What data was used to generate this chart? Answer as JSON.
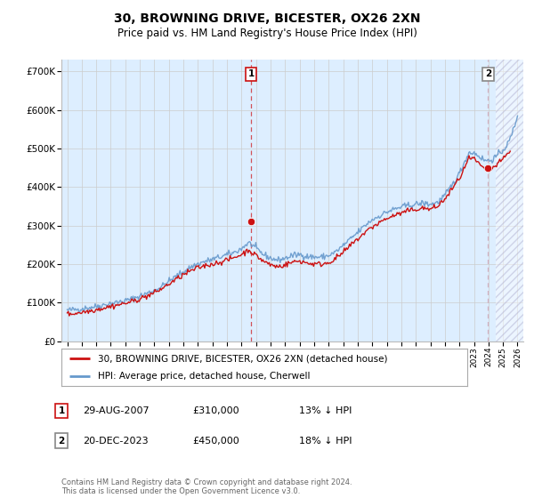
{
  "title": "30, BROWNING DRIVE, BICESTER, OX26 2XN",
  "subtitle": "Price paid vs. HM Land Registry's House Price Index (HPI)",
  "hpi_label": "HPI: Average price, detached house, Cherwell",
  "property_label": "30, BROWNING DRIVE, BICESTER, OX26 2XN (detached house)",
  "annotation1": {
    "label": "1",
    "date": "29-AUG-2007",
    "price": "£310,000",
    "note": "13% ↓ HPI",
    "x_year": 2007.66,
    "y_val": 310000
  },
  "annotation2": {
    "label": "2",
    "date": "20-DEC-2023",
    "price": "£450,000",
    "note": "18% ↓ HPI",
    "x_year": 2023.97,
    "y_val": 450000
  },
  "footer": "Contains HM Land Registry data © Crown copyright and database right 2024.\nThis data is licensed under the Open Government Licence v3.0.",
  "hpi_color": "#6699cc",
  "property_color": "#cc1111",
  "dashed_line_color": "#cc1111",
  "dashed_line_color2": "#cc99aa",
  "grid_color": "#cccccc",
  "plot_bg_color": "#ddeeff",
  "background_color": "#ffffff",
  "ylim": [
    0,
    730000
  ],
  "yticks": [
    0,
    100000,
    200000,
    300000,
    400000,
    500000,
    600000,
    700000
  ],
  "ytick_labels": [
    "£0",
    "£100K",
    "£200K",
    "£300K",
    "£400K",
    "£500K",
    "£600K",
    "£700K"
  ],
  "xlim_start": 1994.6,
  "xlim_end": 2026.4,
  "xtick_years": [
    1995,
    1996,
    1997,
    1998,
    1999,
    2000,
    2001,
    2002,
    2003,
    2004,
    2005,
    2006,
    2007,
    2008,
    2009,
    2010,
    2011,
    2012,
    2013,
    2014,
    2015,
    2016,
    2017,
    2018,
    2019,
    2020,
    2021,
    2022,
    2023,
    2024,
    2025,
    2026
  ],
  "hatch_start": 2024.5,
  "hpi_waypoints": [
    [
      1995.0,
      80000
    ],
    [
      1995.5,
      82000
    ],
    [
      1996.0,
      84000
    ],
    [
      1996.5,
      87000
    ],
    [
      1997.0,
      90000
    ],
    [
      1997.5,
      94000
    ],
    [
      1998.0,
      98000
    ],
    [
      1998.5,
      101000
    ],
    [
      1999.0,
      105000
    ],
    [
      1999.5,
      110000
    ],
    [
      2000.0,
      117000
    ],
    [
      2000.5,
      124000
    ],
    [
      2001.0,
      132000
    ],
    [
      2001.5,
      142000
    ],
    [
      2002.0,
      155000
    ],
    [
      2002.5,
      168000
    ],
    [
      2003.0,
      180000
    ],
    [
      2003.5,
      192000
    ],
    [
      2004.0,
      200000
    ],
    [
      2004.5,
      207000
    ],
    [
      2005.0,
      212000
    ],
    [
      2005.5,
      218000
    ],
    [
      2006.0,
      224000
    ],
    [
      2006.5,
      230000
    ],
    [
      2007.0,
      240000
    ],
    [
      2007.3,
      250000
    ],
    [
      2007.5,
      255000
    ],
    [
      2007.8,
      248000
    ],
    [
      2008.0,
      240000
    ],
    [
      2008.5,
      225000
    ],
    [
      2009.0,
      215000
    ],
    [
      2009.5,
      210000
    ],
    [
      2010.0,
      215000
    ],
    [
      2010.5,
      222000
    ],
    [
      2011.0,
      225000
    ],
    [
      2011.5,
      220000
    ],
    [
      2012.0,
      218000
    ],
    [
      2012.5,
      218000
    ],
    [
      2013.0,
      222000
    ],
    [
      2013.5,
      232000
    ],
    [
      2014.0,
      248000
    ],
    [
      2014.5,
      265000
    ],
    [
      2015.0,
      282000
    ],
    [
      2015.5,
      300000
    ],
    [
      2016.0,
      315000
    ],
    [
      2016.5,
      325000
    ],
    [
      2017.0,
      335000
    ],
    [
      2017.5,
      342000
    ],
    [
      2018.0,
      348000
    ],
    [
      2018.5,
      352000
    ],
    [
      2019.0,
      355000
    ],
    [
      2019.5,
      358000
    ],
    [
      2020.0,
      355000
    ],
    [
      2020.5,
      360000
    ],
    [
      2021.0,
      378000
    ],
    [
      2021.5,
      405000
    ],
    [
      2022.0,
      435000
    ],
    [
      2022.3,
      460000
    ],
    [
      2022.5,
      478000
    ],
    [
      2022.7,
      490000
    ],
    [
      2023.0,
      488000
    ],
    [
      2023.3,
      482000
    ],
    [
      2023.5,
      475000
    ],
    [
      2023.7,
      470000
    ],
    [
      2024.0,
      468000
    ],
    [
      2024.3,
      472000
    ],
    [
      2024.5,
      478000
    ],
    [
      2024.7,
      485000
    ],
    [
      2025.0,
      495000
    ],
    [
      2025.3,
      510000
    ],
    [
      2025.5,
      525000
    ],
    [
      2025.7,
      548000
    ],
    [
      2025.9,
      570000
    ],
    [
      2026.0,
      590000
    ]
  ],
  "prop_waypoints": [
    [
      1995.0,
      70000
    ],
    [
      1995.5,
      72000
    ],
    [
      1996.0,
      75000
    ],
    [
      1996.5,
      78000
    ],
    [
      1997.0,
      82000
    ],
    [
      1997.5,
      86000
    ],
    [
      1998.0,
      90000
    ],
    [
      1998.5,
      94000
    ],
    [
      1999.0,
      98000
    ],
    [
      1999.5,
      103000
    ],
    [
      2000.0,
      110000
    ],
    [
      2000.5,
      117000
    ],
    [
      2001.0,
      125000
    ],
    [
      2001.5,
      136000
    ],
    [
      2002.0,
      148000
    ],
    [
      2002.5,
      160000
    ],
    [
      2003.0,
      172000
    ],
    [
      2003.5,
      182000
    ],
    [
      2004.0,
      190000
    ],
    [
      2004.5,
      196000
    ],
    [
      2005.0,
      200000
    ],
    [
      2005.5,
      205000
    ],
    [
      2006.0,
      210000
    ],
    [
      2006.5,
      217000
    ],
    [
      2007.0,
      225000
    ],
    [
      2007.3,
      232000
    ],
    [
      2007.5,
      238000
    ],
    [
      2007.7,
      230000
    ],
    [
      2008.0,
      222000
    ],
    [
      2008.5,
      208000
    ],
    [
      2009.0,
      198000
    ],
    [
      2009.5,
      193000
    ],
    [
      2010.0,
      198000
    ],
    [
      2010.5,
      205000
    ],
    [
      2011.0,
      208000
    ],
    [
      2011.5,
      203000
    ],
    [
      2012.0,
      200000
    ],
    [
      2012.5,
      200000
    ],
    [
      2013.0,
      204000
    ],
    [
      2013.5,
      215000
    ],
    [
      2014.0,
      230000
    ],
    [
      2014.5,
      248000
    ],
    [
      2015.0,
      265000
    ],
    [
      2015.5,
      282000
    ],
    [
      2016.0,
      296000
    ],
    [
      2016.5,
      308000
    ],
    [
      2017.0,
      318000
    ],
    [
      2017.5,
      326000
    ],
    [
      2018.0,
      332000
    ],
    [
      2018.5,
      338000
    ],
    [
      2019.0,
      342000
    ],
    [
      2019.5,
      345000
    ],
    [
      2020.0,
      342000
    ],
    [
      2020.5,
      350000
    ],
    [
      2021.0,
      368000
    ],
    [
      2021.5,
      395000
    ],
    [
      2022.0,
      422000
    ],
    [
      2022.3,
      445000
    ],
    [
      2022.5,
      462000
    ],
    [
      2022.7,
      475000
    ],
    [
      2023.0,
      472000
    ],
    [
      2023.3,
      462000
    ],
    [
      2023.5,
      452000
    ],
    [
      2023.7,
      445000
    ],
    [
      2024.0,
      442000
    ],
    [
      2024.3,
      448000
    ],
    [
      2024.5,
      455000
    ],
    [
      2024.7,
      462000
    ],
    [
      2025.0,
      472000
    ],
    [
      2025.3,
      485000
    ],
    [
      2025.5,
      492000
    ]
  ]
}
